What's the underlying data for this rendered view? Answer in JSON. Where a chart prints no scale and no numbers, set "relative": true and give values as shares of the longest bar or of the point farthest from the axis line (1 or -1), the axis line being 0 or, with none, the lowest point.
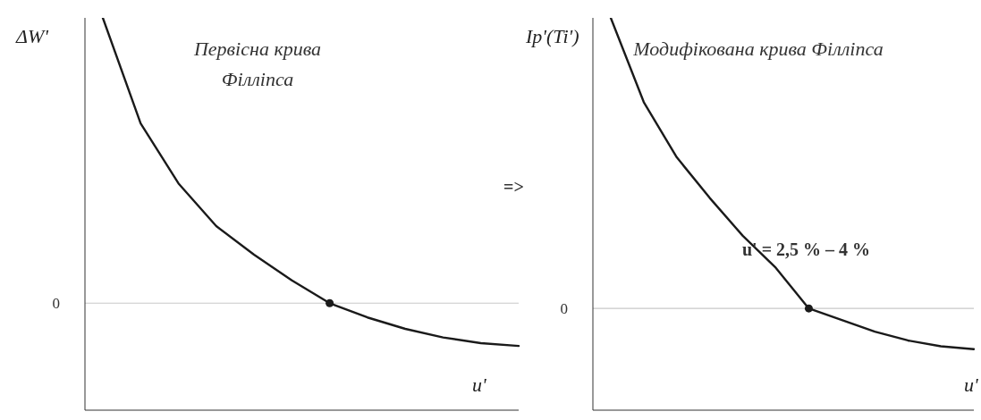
{
  "chart_data": [
    {
      "type": "line",
      "title": "Первісна крива Філліпса",
      "ylabel": "ΔW'",
      "xlabel": "u'",
      "relative": true,
      "categories": [
        null,
        null,
        null,
        null,
        null,
        null,
        null,
        null,
        null,
        null,
        null,
        null
      ],
      "series": [
        {
          "color": "#1a1a1a",
          "values": [
            1.0,
            0.63,
            0.42,
            0.27,
            0.17,
            0.08,
            0.0,
            -0.05,
            -0.09,
            -0.12,
            -0.14,
            -0.15
          ]
        }
      ],
      "ref_lines": [
        {
          "axis": "y",
          "value": 0,
          "label": "0",
          "color": "#c8c8c8"
        }
      ],
      "annotations": [
        "=>"
      ]
    },
    {
      "type": "line",
      "title": "Модифікована крива Філліпса",
      "ylabel": "Ip'(Ti')",
      "xlabel": "u'",
      "relative": true,
      "categories": [
        null,
        null,
        null,
        null,
        null,
        null,
        null,
        null,
        null,
        null,
        null,
        null
      ],
      "series": [
        {
          "color": "#1a1a1a",
          "values": [
            1.0,
            0.71,
            0.52,
            0.38,
            0.25,
            0.14,
            0.0,
            -0.04,
            -0.08,
            -0.11,
            -0.13,
            -0.14
          ]
        }
      ],
      "ref_lines": [
        {
          "axis": "y",
          "value": 0,
          "label": "0",
          "color": "#c8c8c8"
        }
      ],
      "annotations": [
        "u' = 2,5 % – 4 %"
      ]
    }
  ]
}
